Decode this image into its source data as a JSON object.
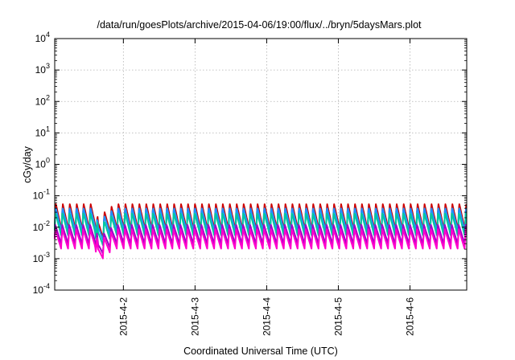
{
  "chart_data": {
    "type": "line",
    "title": "/data/run/goesPlots/archive/2015-04-06/19:00/flux/../bryn/5daysMars.plot",
    "xlabel": "Coordinated Universal Time (UTC)",
    "ylabel": "cGy/day",
    "yscale": "log",
    "ylim": [
      0.0001,
      10000
    ],
    "xlim": [
      "2015-04-01 01:00",
      "2015-04-06 19:00"
    ],
    "grid": true,
    "y_ticks": [
      {
        "value": 0.0001,
        "base": "10",
        "exp": "-4"
      },
      {
        "value": 0.001,
        "base": "10",
        "exp": "-3"
      },
      {
        "value": 0.01,
        "base": "10",
        "exp": "-2"
      },
      {
        "value": 0.1,
        "base": "10",
        "exp": "-1"
      },
      {
        "value": 1,
        "base": "10",
        "exp": "0"
      },
      {
        "value": 10,
        "base": "10",
        "exp": "1"
      },
      {
        "value": 100,
        "base": "10",
        "exp": "2"
      },
      {
        "value": 1000,
        "base": "10",
        "exp": "3"
      },
      {
        "value": 10000,
        "base": "10",
        "exp": "4"
      }
    ],
    "x_ticks": [
      {
        "value": "2015-04-02 00:00",
        "label": "2015-4-2"
      },
      {
        "value": "2015-04-03 00:00",
        "label": "2015-4-3"
      },
      {
        "value": "2015-04-04 00:00",
        "label": "2015-4-4"
      },
      {
        "value": "2015-04-05 00:00",
        "label": "2015-4-5"
      },
      {
        "value": "2015-04-06 00:00",
        "label": "2015-4-6"
      }
    ],
    "series": [
      {
        "color": "#cc0000",
        "cycle_hours": 2.33,
        "peak": 0.06,
        "trough": 0.008
      },
      {
        "color": "#1e90ff",
        "cycle_hours": 2.33,
        "peak": 0.045,
        "trough": 0.007
      },
      {
        "color": "#00c8a0",
        "cycle_hours": 2.33,
        "peak": 0.03,
        "trough": 0.005
      },
      {
        "color": "#a000c8",
        "cycle_hours": 2.33,
        "peak": 0.012,
        "trough": 0.0028
      },
      {
        "color": "#ff00cc",
        "cycle_hours": 2.33,
        "peak": 0.009,
        "trough": 0.002
      }
    ],
    "event": {
      "time": "2015-04-01 15:30",
      "min_factor": 0.3
    }
  }
}
